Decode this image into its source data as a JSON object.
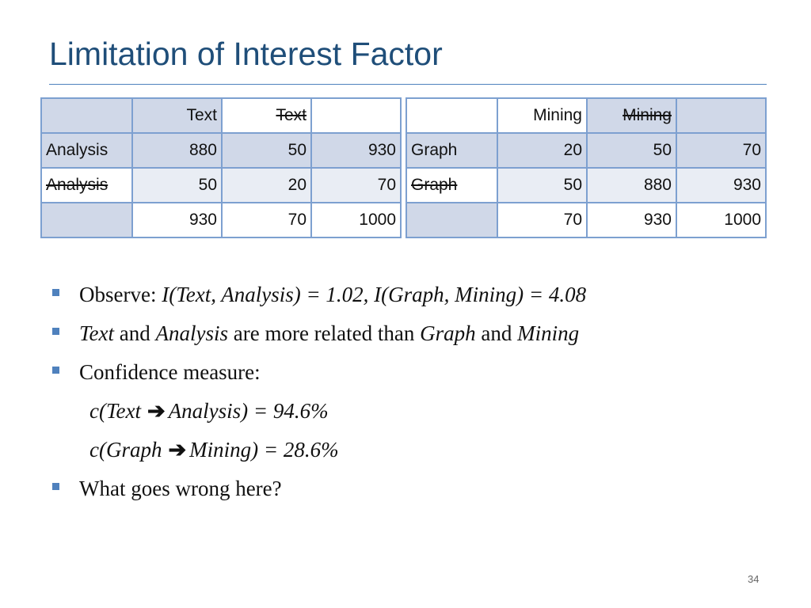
{
  "title": "Limitation of Interest Factor",
  "tables": {
    "left": {
      "header": [
        "",
        "Text",
        "Text",
        ""
      ],
      "rows": [
        [
          "Analysis",
          "880",
          "50",
          "930"
        ],
        [
          "Analysis",
          "50",
          "20",
          "70"
        ],
        [
          "",
          "930",
          "70",
          "1000"
        ]
      ]
    },
    "right": {
      "header": [
        "",
        "Mining",
        "Mining",
        ""
      ],
      "rows": [
        [
          "Graph",
          "20",
          "50",
          "70"
        ],
        [
          "Graph",
          "50",
          "880",
          "930"
        ],
        [
          "",
          "70",
          "930",
          "1000"
        ]
      ]
    }
  },
  "bullets": {
    "observe": {
      "lead": "Observe: ",
      "formula": "I(Text, Analysis) = 1.02, I(Graph, Mining) = 4.08"
    },
    "related": {
      "w1": "Text",
      "t1": " and ",
      "w2": "Analysis",
      "t2": " are more related than ",
      "w3": "Graph",
      "t3": " and ",
      "w4": "Mining"
    },
    "confidence": "Confidence measure:",
    "conf1": {
      "lhs": "c(Text",
      "arrow": "➔",
      "rhs": "Analysis) = 94.6%"
    },
    "conf2": {
      "lhs": "c(Graph",
      "arrow": "➔",
      "rhs": "Mining) = 28.6%"
    },
    "question": "What goes wrong here?"
  },
  "page_number": "34"
}
